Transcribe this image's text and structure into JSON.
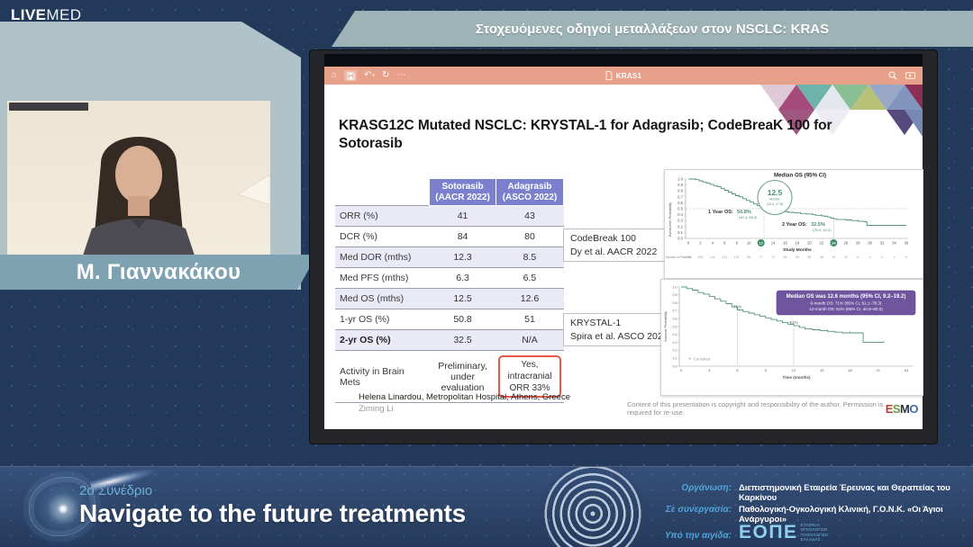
{
  "header": {
    "logo_live": "LIVE",
    "logo_med": "MED",
    "session_title": "Στοχευόμενες οδηγοί μεταλλάξεων στον NSCLC: KRAS"
  },
  "speaker": {
    "name": "Μ. Γιαννακάκου"
  },
  "viewer": {
    "doc_title": "KRAS1"
  },
  "colors": {
    "table_header": "#7a80cd",
    "highlight_box": "#e4584a",
    "km_curve": "#53917e",
    "badge_purple": "#6f549e",
    "toolbar_salmon": "#e7a089",
    "accent_blue": "#4fa5d9",
    "band_teal": "#9eb3b5"
  },
  "slide": {
    "title": "KRASG12C Mutated NSCLC: KRYSTAL-1 for Adagrasib; CodeBreaK 100 for Sotorasib",
    "table": {
      "headers": [
        {
          "line1": "Sotorasib",
          "line2": "(AACR 2022)"
        },
        {
          "line1": "Adagrasib",
          "line2": "(ASCO 2022)"
        }
      ],
      "rows": [
        {
          "label": "ORR (%)",
          "values": [
            "41",
            "43"
          ]
        },
        {
          "label": "DCR (%)",
          "values": [
            "84",
            "80"
          ]
        },
        {
          "label": "Med DOR (mths)",
          "values": [
            "12.3",
            "8.5"
          ]
        },
        {
          "label": "Med PFS (mths)",
          "values": [
            "6.3",
            "6.5"
          ]
        },
        {
          "label": "Med OS (mths)",
          "values": [
            "12.5",
            "12.6"
          ]
        },
        {
          "label": "1-yr OS (%)",
          "values": [
            "50.8",
            "51"
          ]
        },
        {
          "label": "2-yr OS (%)",
          "values": [
            "32.5",
            "N/A"
          ],
          "bold_label": true
        },
        {
          "label": "Activity in Brain Mets",
          "values": [
            "Preliminary, under evaluation",
            "Yes, intracranial ORR 33%"
          ],
          "highlight_last": true
        }
      ]
    },
    "study_labels": [
      {
        "line1": "CodeBreak 100",
        "line2": "Dy et al. AACR 2022"
      },
      {
        "line1": "KRYSTAL-1",
        "line2": "Spira et al. ASCO 2022"
      }
    ],
    "attribution": {
      "line1": "Helena Linardou, Metropolitan Hospital, Athens, Greece",
      "line2": "Ziming Li"
    },
    "copyright": "Content of this presentation is copyright and responsibility of the author. Permission is required for re-use.",
    "esmo_letters": [
      "E",
      "S",
      "M",
      "O"
    ]
  },
  "chart_data": [
    {
      "type": "line",
      "subtype": "kaplan-meier",
      "study": "CodeBreak 100 (Sotorasib)",
      "title": "Median OS (95% CI)",
      "median_circle": {
        "value": "12.5",
        "unit": "Months",
        "ci": "(10.0, 17.8)"
      },
      "annotations": [
        {
          "label": "1 Year OS:",
          "value": "50.8%",
          "ci": "(40.4, 58.3)"
        },
        {
          "label": "2 Year OS:",
          "value": "32.5%",
          "ci": "(25.0, 40.2)"
        }
      ],
      "xlabel": "Study Months",
      "ylabel": "Event-free Probability",
      "xlim": [
        0,
        36
      ],
      "ylim": [
        0,
        1
      ],
      "x_ticks": [
        0,
        2,
        4,
        6,
        8,
        10,
        12,
        14,
        16,
        18,
        20,
        22,
        24,
        26,
        28,
        30,
        32,
        34,
        36
      ],
      "highlight_ticks": [
        12,
        24
      ],
      "y_ticks": [
        0.0,
        0.1,
        0.2,
        0.3,
        0.4,
        0.5,
        0.6,
        0.7,
        0.8,
        0.9,
        1.0
      ],
      "median_month": 12.5,
      "median_line_y": 0.5,
      "points": [
        [
          0,
          1
        ],
        [
          1.2,
          0.99
        ],
        [
          1.8,
          0.97
        ],
        [
          2.4,
          0.95
        ],
        [
          3,
          0.93
        ],
        [
          3.6,
          0.91
        ],
        [
          4.2,
          0.89
        ],
        [
          4.8,
          0.87
        ],
        [
          5.4,
          0.84
        ],
        [
          6,
          0.81
        ],
        [
          6.6,
          0.78
        ],
        [
          7.2,
          0.75
        ],
        [
          7.8,
          0.72
        ],
        [
          8.4,
          0.7
        ],
        [
          9,
          0.67
        ],
        [
          9.6,
          0.64
        ],
        [
          10.2,
          0.61
        ],
        [
          10.8,
          0.58
        ],
        [
          11.4,
          0.55
        ],
        [
          12,
          0.53
        ],
        [
          12.5,
          0.51
        ],
        [
          13,
          0.5
        ],
        [
          13.5,
          0.49
        ],
        [
          14,
          0.48
        ],
        [
          15,
          0.47
        ],
        [
          15.5,
          0.46
        ],
        [
          16,
          0.45
        ],
        [
          16.5,
          0.44
        ],
        [
          17.5,
          0.43
        ],
        [
          18.5,
          0.42
        ],
        [
          19.5,
          0.41
        ],
        [
          20.5,
          0.4
        ],
        [
          21,
          0.39
        ],
        [
          22,
          0.38
        ],
        [
          22.5,
          0.37
        ],
        [
          23,
          0.36
        ],
        [
          23.5,
          0.34
        ],
        [
          24,
          0.33
        ],
        [
          24.5,
          0.32
        ],
        [
          26,
          0.31
        ],
        [
          27,
          0.3
        ],
        [
          28,
          0.29
        ],
        [
          29,
          0.28
        ],
        [
          29.5,
          0.22
        ],
        [
          36,
          0.22
        ]
      ],
      "patients_row": {
        "label": "Number of Patients:",
        "values": [
          174,
          153,
          141,
          131,
          121,
          96,
          77,
          71,
          65,
          59,
          52,
          46,
          32,
          22,
          6,
          4,
          2,
          1,
          0
        ]
      }
    },
    {
      "type": "line",
      "subtype": "kaplan-meier",
      "study": "KRYSTAL-1 (Adagrasib)",
      "badge": {
        "line1": "Median OS was 12.6 months (95% CI, 9.2–19.2)",
        "line2": "6-month OS: 71% (95% CI, 61.1–78.3)",
        "line3": "12-month OS: 51% (95% CI, 40.9–60.0)"
      },
      "xlabel": "Time (months)",
      "ylabel": "Survival Probability",
      "xlim": [
        0,
        24
      ],
      "ylim": [
        0,
        1
      ],
      "x_ticks": [
        0,
        3,
        6,
        9,
        12,
        15,
        18,
        21,
        24
      ],
      "y_ticks": [
        0.0,
        0.1,
        0.2,
        0.3,
        0.4,
        0.5,
        0.6,
        0.7,
        0.8,
        0.9,
        1.0
      ],
      "curve_labels": [
        {
          "x": 6,
          "y": 0.71,
          "text": "71%"
        },
        {
          "x": 12,
          "y": 0.51,
          "text": "51%"
        }
      ],
      "legend": "+ Censored",
      "points": [
        [
          0,
          1
        ],
        [
          0.6,
          0.98
        ],
        [
          1.2,
          0.96
        ],
        [
          1.8,
          0.93
        ],
        [
          2.4,
          0.91
        ],
        [
          3,
          0.88
        ],
        [
          3.6,
          0.85
        ],
        [
          4.2,
          0.82
        ],
        [
          4.8,
          0.79
        ],
        [
          5.4,
          0.75
        ],
        [
          6,
          0.71
        ],
        [
          6.6,
          0.69
        ],
        [
          7.2,
          0.67
        ],
        [
          7.8,
          0.65
        ],
        [
          8.4,
          0.63
        ],
        [
          9,
          0.61
        ],
        [
          9.6,
          0.59
        ],
        [
          10.2,
          0.57
        ],
        [
          10.8,
          0.55
        ],
        [
          11.4,
          0.53
        ],
        [
          12,
          0.51
        ],
        [
          12.6,
          0.49
        ],
        [
          13.2,
          0.47
        ],
        [
          14,
          0.46
        ],
        [
          14.8,
          0.45
        ],
        [
          15.6,
          0.44
        ],
        [
          16.4,
          0.43
        ],
        [
          17.2,
          0.42
        ],
        [
          18,
          0.42
        ],
        [
          19,
          0.42
        ],
        [
          19.4,
          0.3
        ],
        [
          21.6,
          0.3
        ]
      ]
    }
  ],
  "footer": {
    "congress_number": "2ο Συνέδριο",
    "congress_title": "Navigate to the future treatments",
    "credits": [
      {
        "label": "Οργάνωση:",
        "value": "Διεπιστημονική Εταιρεία Έρευνας και Θεραπείας του Καρκίνου"
      },
      {
        "label": "Σε συνεργασία:",
        "value": "Παθολογική-Ογκολογική Κλινική, Γ.Ο.Ν.Κ. «Οι Άγιοι Ανάργυροι»"
      },
      {
        "label": "Υπό την αιγίδα:",
        "value": ""
      }
    ],
    "eope": {
      "acronym": "ΕΟΠΕ",
      "full": [
        "ΕΤΑΙΡΕΙΑ",
        "ΟΓΚΟΛΟΓΩΝ",
        "ΠΑΘΟΛΟΓΩΝ",
        "ΕΛΛΑΔΑΣ"
      ]
    }
  }
}
